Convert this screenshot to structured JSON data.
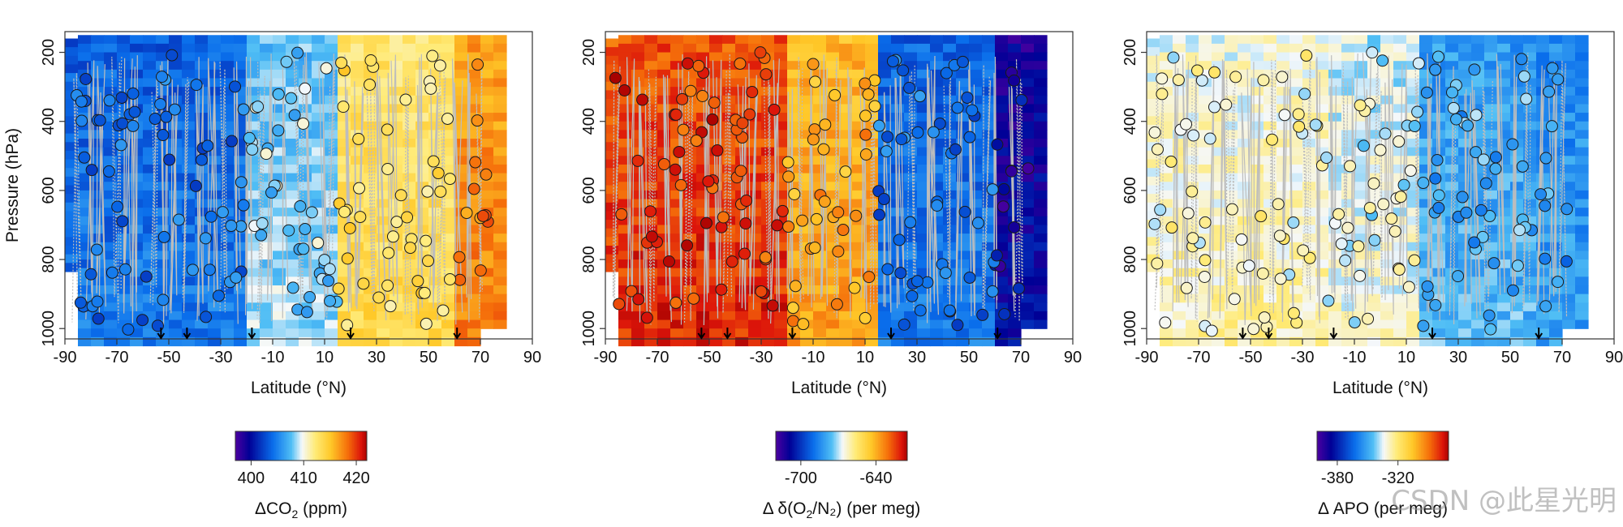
{
  "chart_data": [
    {
      "type": "heatmap",
      "title": "",
      "xlabel": "Latitude (°N)",
      "ylabel": "Pressure (hPa)",
      "xlim": [
        -90,
        90
      ],
      "ylim": [
        1030,
        140
      ],
      "xticks": [
        "-90",
        "-70",
        "-50",
        "-30",
        "-10",
        "10",
        "30",
        "50",
        "70",
        "90"
      ],
      "yticks": [
        "200",
        "400",
        "600",
        "800",
        "1000"
      ],
      "colorbar": {
        "label_main": "ΔCO",
        "label_sub": "2",
        "label_tail": " (ppm)",
        "range": [
          397,
          422
        ],
        "ticks": [
          "400",
          "410",
          "420"
        ]
      },
      "regions": [
        {
          "lat": [
            -90,
            -20
          ],
          "value": 404
        },
        {
          "lat": [
            -20,
            15
          ],
          "value": 408
        },
        {
          "lat": [
            15,
            60
          ],
          "value": 413
        },
        {
          "lat": [
            60,
            80
          ],
          "value": 417
        }
      ],
      "arrow_lats": [
        -53,
        -43,
        -18,
        20,
        61
      ]
    },
    {
      "type": "heatmap",
      "title": "",
      "xlabel": "Latitude (°N)",
      "ylabel": "",
      "xlim": [
        -90,
        90
      ],
      "ylim": [
        1030,
        140
      ],
      "xticks": [
        "-90",
        "-70",
        "-50",
        "-30",
        "-10",
        "10",
        "30",
        "50",
        "70",
        "90"
      ],
      "yticks": [
        "200",
        "400",
        "600",
        "800",
        "1000"
      ],
      "colorbar": {
        "label_main": "Δ δ(O",
        "label_sub": "2",
        "label_tail": "/N₂) (per meg)",
        "range": [
          -720,
          -615
        ],
        "ticks": [
          "-700",
          "-640"
        ]
      },
      "regions": [
        {
          "lat": [
            -90,
            -20
          ],
          "value": -625
        },
        {
          "lat": [
            -20,
            15
          ],
          "value": -640
        },
        {
          "lat": [
            15,
            60
          ],
          "value": -690
        },
        {
          "lat": [
            60,
            80
          ],
          "value": -710
        }
      ],
      "arrow_lats": [
        -53,
        -43,
        -18,
        20,
        61
      ]
    },
    {
      "type": "heatmap",
      "title": "",
      "xlabel": "Latitude (°N)",
      "ylabel": "",
      "xlim": [
        -90,
        90
      ],
      "ylim": [
        1030,
        140
      ],
      "xticks": [
        "-90",
        "-70",
        "-50",
        "-30",
        "-10",
        "10",
        "30",
        "50",
        "70",
        "90"
      ],
      "yticks": [
        "200",
        "400",
        "600",
        "800",
        "1000"
      ],
      "colorbar": {
        "label_main": "Δ APO (per meg)",
        "label_sub": "",
        "label_tail": "",
        "range": [
          -400,
          -270
        ],
        "ticks": [
          "-380",
          "-320"
        ]
      },
      "regions": [
        {
          "lat": [
            -90,
            -20
          ],
          "value": -330
        },
        {
          "lat": [
            -20,
            15
          ],
          "value": -335
        },
        {
          "lat": [
            15,
            60
          ],
          "value": -350
        },
        {
          "lat": [
            60,
            80
          ],
          "value": -355
        }
      ],
      "arrow_lats": [
        -53,
        -43,
        -18,
        20,
        61
      ]
    }
  ],
  "watermark": "CSDN @此星光明"
}
